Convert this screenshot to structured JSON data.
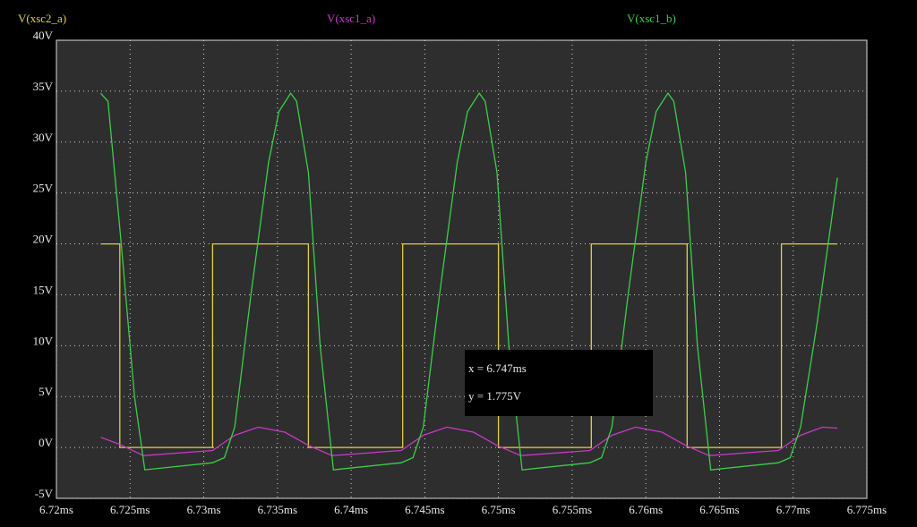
{
  "chart_data": {
    "type": "line",
    "grid": true,
    "xlim": [
      6.72,
      6.775
    ],
    "ylim": [
      -5,
      40
    ],
    "xticks": [
      {
        "value": 6.72,
        "label": "6.72ms"
      },
      {
        "value": 6.725,
        "label": "6.725ms"
      },
      {
        "value": 6.73,
        "label": "6.73ms"
      },
      {
        "value": 6.735,
        "label": "6.735ms"
      },
      {
        "value": 6.74,
        "label": "6.74ms"
      },
      {
        "value": 6.745,
        "label": "6.745ms"
      },
      {
        "value": 6.75,
        "label": "6.75ms"
      },
      {
        "value": 6.755,
        "label": "6.755ms"
      },
      {
        "value": 6.76,
        "label": "6.76ms"
      },
      {
        "value": 6.765,
        "label": "6.765ms"
      },
      {
        "value": 6.77,
        "label": "6.77ms"
      },
      {
        "value": 6.775,
        "label": "6.775ms"
      }
    ],
    "yticks": [
      {
        "value": -5,
        "label": "-5V"
      },
      {
        "value": 0,
        "label": "0V"
      },
      {
        "value": 5,
        "label": "5V"
      },
      {
        "value": 10,
        "label": "10V"
      },
      {
        "value": 15,
        "label": "15V"
      },
      {
        "value": 20,
        "label": "20V"
      },
      {
        "value": 25,
        "label": "25V"
      },
      {
        "value": 30,
        "label": "30V"
      },
      {
        "value": 35,
        "label": "35V"
      },
      {
        "value": 40,
        "label": "40V"
      }
    ],
    "series": [
      {
        "name": "V(xsc2_a)",
        "color": "#e0d040",
        "x": [
          6.723,
          6.7243,
          6.7243,
          6.7306,
          6.7306,
          6.7371,
          6.7371,
          6.7435,
          6.7435,
          6.75,
          6.75,
          6.7563,
          6.7563,
          6.7628,
          6.7628,
          6.7692,
          6.7692,
          6.773
        ],
        "values": [
          20,
          20,
          0,
          0,
          20,
          20,
          0,
          0,
          20,
          20,
          0,
          0,
          20,
          20,
          0,
          0,
          20,
          20
        ]
      },
      {
        "name": "V(xsc1_a)",
        "color": "#c838c8",
        "x": [
          6.723,
          6.7243,
          6.7259,
          6.7306,
          6.7321,
          6.7337,
          6.7355,
          6.7371,
          6.7387,
          6.7434,
          6.7449,
          6.7465,
          6.7483,
          6.7499,
          6.7515,
          6.7562,
          6.7577,
          6.7593,
          6.7611,
          6.7627,
          6.7643,
          6.769,
          6.7705,
          6.772,
          6.773
        ],
        "values": [
          1.0,
          0.3,
          -0.8,
          -0.3,
          1.2,
          2.0,
          1.5,
          0.2,
          -0.8,
          -0.3,
          1.2,
          2.0,
          1.5,
          0.2,
          -0.8,
          -0.3,
          1.2,
          2.0,
          1.5,
          0.2,
          -0.8,
          -0.3,
          1.2,
          2.0,
          1.9
        ]
      },
      {
        "name": "V(xsc1_b)",
        "color": "#38d048",
        "x": [
          6.723,
          6.7235,
          6.7244,
          6.7253,
          6.726,
          6.7306,
          6.7314,
          6.7321,
          6.7332,
          6.7344,
          6.7351,
          6.7359,
          6.7363,
          6.7371,
          6.7379,
          6.7388,
          6.7434,
          6.7442,
          6.7449,
          6.746,
          6.7472,
          6.7479,
          6.7487,
          6.7491,
          6.7499,
          6.7507,
          6.7516,
          6.7562,
          6.757,
          6.7577,
          6.7588,
          6.76,
          6.7607,
          6.7615,
          6.7619,
          6.7627,
          6.7635,
          6.7644,
          6.769,
          6.7698,
          6.7705,
          6.7716,
          6.773
        ],
        "values": [
          34.8,
          34,
          20,
          5,
          -2.2,
          -1.5,
          -1,
          2,
          15,
          28,
          33,
          34.8,
          34,
          27,
          10,
          -2.2,
          -1.5,
          -1,
          2,
          15,
          28,
          33,
          34.8,
          34,
          27,
          10,
          -2.2,
          -1.5,
          -1,
          2,
          15,
          28,
          33,
          34.8,
          34,
          27,
          10,
          -2.2,
          -1.5,
          -1,
          2,
          12,
          26.5
        ]
      }
    ],
    "annotations": [
      "x = 6.747ms",
      "y = 1.775V"
    ]
  }
}
